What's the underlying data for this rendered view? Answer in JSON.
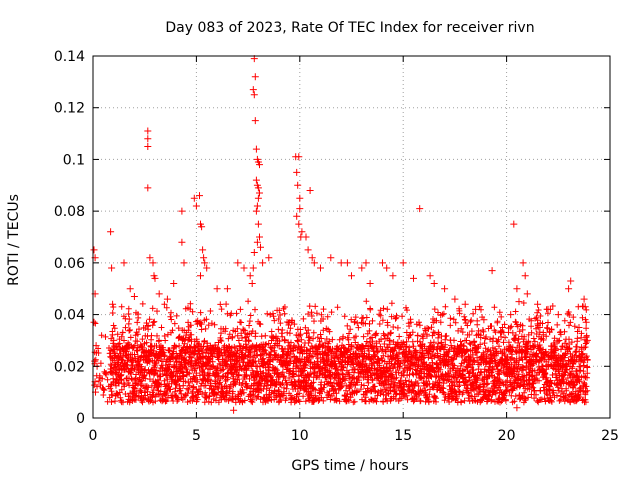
{
  "chart_data": {
    "type": "scatter",
    "title": "Day 083 of 2023, Rate Of TEC Index for receiver rivn",
    "xlabel": "GPS time / hours",
    "ylabel": "ROTI / TECUs",
    "xlim": [
      0,
      25
    ],
    "ylim": [
      0,
      0.14
    ],
    "xticks": [
      0,
      5,
      10,
      15,
      20,
      25
    ],
    "yticks": [
      0,
      0.02,
      0.04,
      0.06,
      0.08,
      0.1,
      0.12,
      0.14
    ],
    "xtick_labels": [
      "0",
      "5",
      "10",
      "15",
      "20",
      "25"
    ],
    "ytick_labels": [
      "0",
      "0.02",
      "0.04",
      "0.06",
      "0.08",
      "0.1",
      "0.12",
      "0.14"
    ],
    "grid": true,
    "marker": "+",
    "series": [
      {
        "name": "ROTI",
        "color": "#ff0000",
        "points": [
          [
            0.05,
            0.065
          ],
          [
            0.1,
            0.062
          ],
          [
            0.1,
            0.048
          ],
          [
            0.05,
            0.037
          ],
          [
            0.08,
            0.022
          ],
          [
            0.1,
            0.014
          ],
          [
            0.12,
            0.01
          ],
          [
            0.15,
            0.028
          ],
          [
            0.2,
            0.02
          ],
          [
            0.85,
            0.072
          ],
          [
            0.9,
            0.058
          ],
          [
            0.95,
            0.044
          ],
          [
            1.0,
            0.03
          ],
          [
            1.05,
            0.025
          ],
          [
            1.5,
            0.06
          ],
          [
            1.8,
            0.05
          ],
          [
            2.0,
            0.047
          ],
          [
            2.65,
            0.111
          ],
          [
            2.65,
            0.108
          ],
          [
            2.65,
            0.105
          ],
          [
            2.65,
            0.089
          ],
          [
            2.75,
            0.062
          ],
          [
            2.9,
            0.06
          ],
          [
            2.95,
            0.055
          ],
          [
            3.0,
            0.054
          ],
          [
            3.2,
            0.048
          ],
          [
            3.6,
            0.046
          ],
          [
            3.9,
            0.052
          ],
          [
            4.3,
            0.08
          ],
          [
            4.3,
            0.068
          ],
          [
            4.4,
            0.06
          ],
          [
            4.9,
            0.085
          ],
          [
            5.0,
            0.082
          ],
          [
            5.15,
            0.086
          ],
          [
            5.2,
            0.075
          ],
          [
            5.25,
            0.074
          ],
          [
            5.3,
            0.065
          ],
          [
            5.35,
            0.062
          ],
          [
            5.4,
            0.06
          ],
          [
            5.5,
            0.058
          ],
          [
            5.2,
            0.055
          ],
          [
            6.0,
            0.05
          ],
          [
            6.5,
            0.05
          ],
          [
            7.0,
            0.06
          ],
          [
            7.3,
            0.058
          ],
          [
            7.8,
            0.139
          ],
          [
            7.85,
            0.132
          ],
          [
            7.75,
            0.127
          ],
          [
            7.8,
            0.125
          ],
          [
            7.85,
            0.115
          ],
          [
            7.9,
            0.104
          ],
          [
            7.95,
            0.1
          ],
          [
            8.0,
            0.099
          ],
          [
            8.05,
            0.098
          ],
          [
            7.9,
            0.092
          ],
          [
            7.95,
            0.09
          ],
          [
            8.0,
            0.089
          ],
          [
            8.05,
            0.087
          ],
          [
            8.0,
            0.085
          ],
          [
            7.95,
            0.082
          ],
          [
            7.9,
            0.08
          ],
          [
            8.0,
            0.075
          ],
          [
            8.05,
            0.07
          ],
          [
            7.95,
            0.068
          ],
          [
            8.1,
            0.066
          ],
          [
            7.8,
            0.064
          ],
          [
            7.75,
            0.058
          ],
          [
            7.6,
            0.055
          ],
          [
            7.7,
            0.052
          ],
          [
            8.2,
            0.06
          ],
          [
            8.5,
            0.062
          ],
          [
            9.8,
            0.101
          ],
          [
            9.95,
            0.101
          ],
          [
            9.85,
            0.095
          ],
          [
            9.9,
            0.09
          ],
          [
            10.0,
            0.085
          ],
          [
            10.0,
            0.081
          ],
          [
            9.85,
            0.078
          ],
          [
            9.95,
            0.075
          ],
          [
            10.1,
            0.072
          ],
          [
            10.05,
            0.07
          ],
          [
            10.5,
            0.088
          ],
          [
            10.3,
            0.07
          ],
          [
            10.4,
            0.065
          ],
          [
            10.6,
            0.062
          ],
          [
            10.7,
            0.06
          ],
          [
            11.0,
            0.058
          ],
          [
            11.5,
            0.062
          ],
          [
            12.0,
            0.06
          ],
          [
            12.3,
            0.06
          ],
          [
            12.5,
            0.055
          ],
          [
            13.0,
            0.058
          ],
          [
            13.2,
            0.06
          ],
          [
            13.4,
            0.052
          ],
          [
            14.0,
            0.06
          ],
          [
            14.2,
            0.058
          ],
          [
            14.5,
            0.055
          ],
          [
            15.0,
            0.06
          ],
          [
            15.5,
            0.054
          ],
          [
            15.8,
            0.081
          ],
          [
            16.3,
            0.055
          ],
          [
            16.5,
            0.052
          ],
          [
            17.0,
            0.05
          ],
          [
            17.5,
            0.046
          ],
          [
            18.0,
            0.044
          ],
          [
            18.5,
            0.042
          ],
          [
            18.9,
            0.038
          ],
          [
            19.3,
            0.057
          ],
          [
            19.8,
            0.035
          ],
          [
            20.2,
            0.04
          ],
          [
            20.35,
            0.075
          ],
          [
            20.5,
            0.05
          ],
          [
            20.6,
            0.045
          ],
          [
            20.8,
            0.06
          ],
          [
            20.9,
            0.055
          ],
          [
            21.0,
            0.048
          ],
          [
            21.5,
            0.044
          ],
          [
            22.0,
            0.042
          ],
          [
            22.5,
            0.04
          ],
          [
            23.0,
            0.05
          ],
          [
            23.1,
            0.053
          ],
          [
            23.5,
            0.035
          ],
          [
            23.75,
            0.046
          ],
          [
            23.8,
            0.043
          ],
          [
            23.85,
            0.037
          ],
          [
            23.9,
            0.03
          ],
          [
            20.5,
            0.004
          ],
          [
            6.8,
            0.003
          ]
        ],
        "band": {
          "x_start": 0.05,
          "x_end": 23.95,
          "x_step": 0.05,
          "base_min": 0.006,
          "base_max": 0.028,
          "upper_spread": 0.018
        }
      }
    ]
  }
}
